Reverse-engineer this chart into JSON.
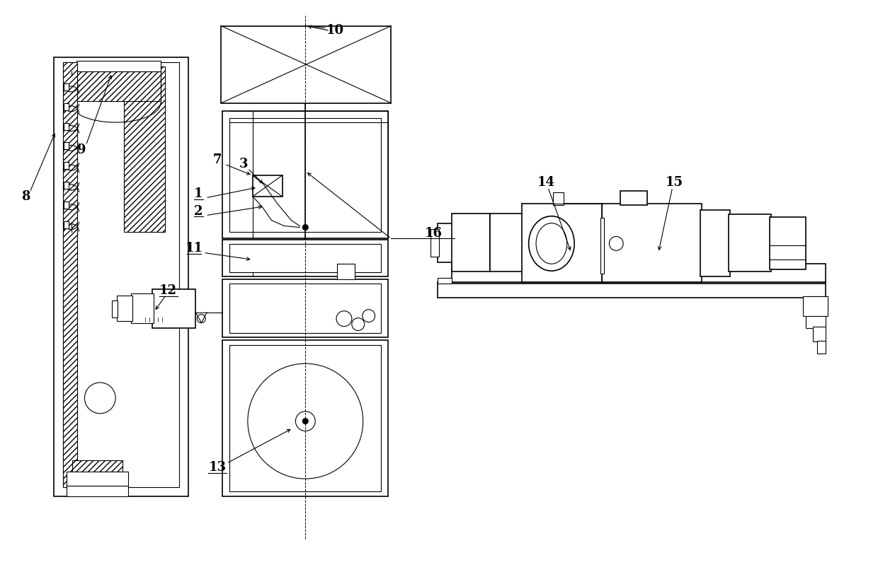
{
  "bg_color": "#ffffff",
  "line_color": "#000000",
  "fig_width": 12.4,
  "fig_height": 8.09
}
